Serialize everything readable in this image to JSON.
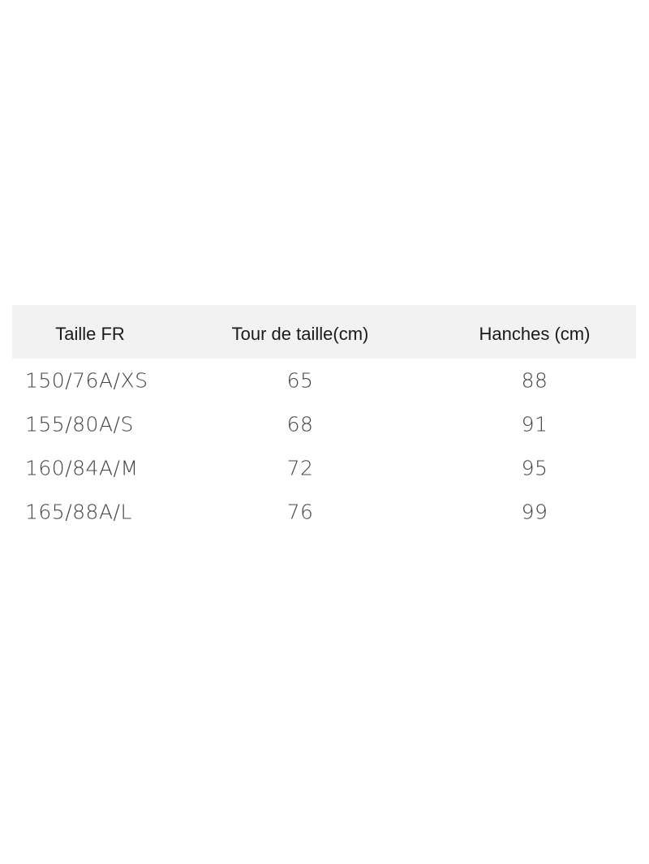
{
  "table": {
    "headers": [
      "Taille FR",
      "Tour de taille(cm)",
      "Hanches (cm)"
    ],
    "rows": [
      [
        "150/76A/XS",
        "65",
        "88"
      ],
      [
        "155/80A/S",
        "68",
        "91"
      ],
      [
        "160/84A/M",
        "72",
        "95"
      ],
      [
        "165/88A/L",
        "76",
        "99"
      ]
    ]
  },
  "colors": {
    "header_bg": "#f2f2f2",
    "text": "#444444"
  }
}
